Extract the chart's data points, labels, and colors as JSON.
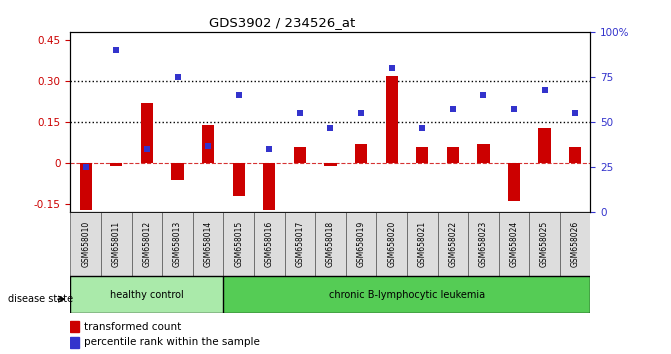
{
  "title": "GDS3902 / 234526_at",
  "samples": [
    "GSM658010",
    "GSM658011",
    "GSM658012",
    "GSM658013",
    "GSM658014",
    "GSM658015",
    "GSM658016",
    "GSM658017",
    "GSM658018",
    "GSM658019",
    "GSM658020",
    "GSM658021",
    "GSM658022",
    "GSM658023",
    "GSM658024",
    "GSM658025",
    "GSM658026"
  ],
  "red_values": [
    -0.17,
    -0.01,
    0.22,
    -0.06,
    0.14,
    -0.12,
    -0.17,
    0.06,
    -0.01,
    0.07,
    0.32,
    0.06,
    0.06,
    0.07,
    -0.14,
    0.13,
    0.06
  ],
  "blue_pct": [
    25,
    90,
    35,
    75,
    37,
    65,
    35,
    55,
    47,
    55,
    80,
    47,
    57,
    65,
    57,
    68,
    55
  ],
  "healthy_control_count": 5,
  "ylim_left": [
    -0.18,
    0.48
  ],
  "ylim_right": [
    0,
    100
  ],
  "yticks_left": [
    -0.15,
    0.0,
    0.15,
    0.3,
    0.45
  ],
  "ytick_labels_left": [
    "-0.15",
    "0",
    "0.15",
    "0.30",
    "0.45"
  ],
  "yticks_right": [
    0,
    25,
    50,
    75,
    100
  ],
  "ytick_labels_right": [
    "0",
    "25",
    "50",
    "75",
    "100%"
  ],
  "hlines": [
    0.15,
    0.3
  ],
  "red_color": "#CC0000",
  "blue_color": "#3333CC",
  "healthy_color": "#AAEAAA",
  "leukemia_color": "#55CC55",
  "plot_bg": "#FFFFFF",
  "label_bg": "#DDDDDD"
}
